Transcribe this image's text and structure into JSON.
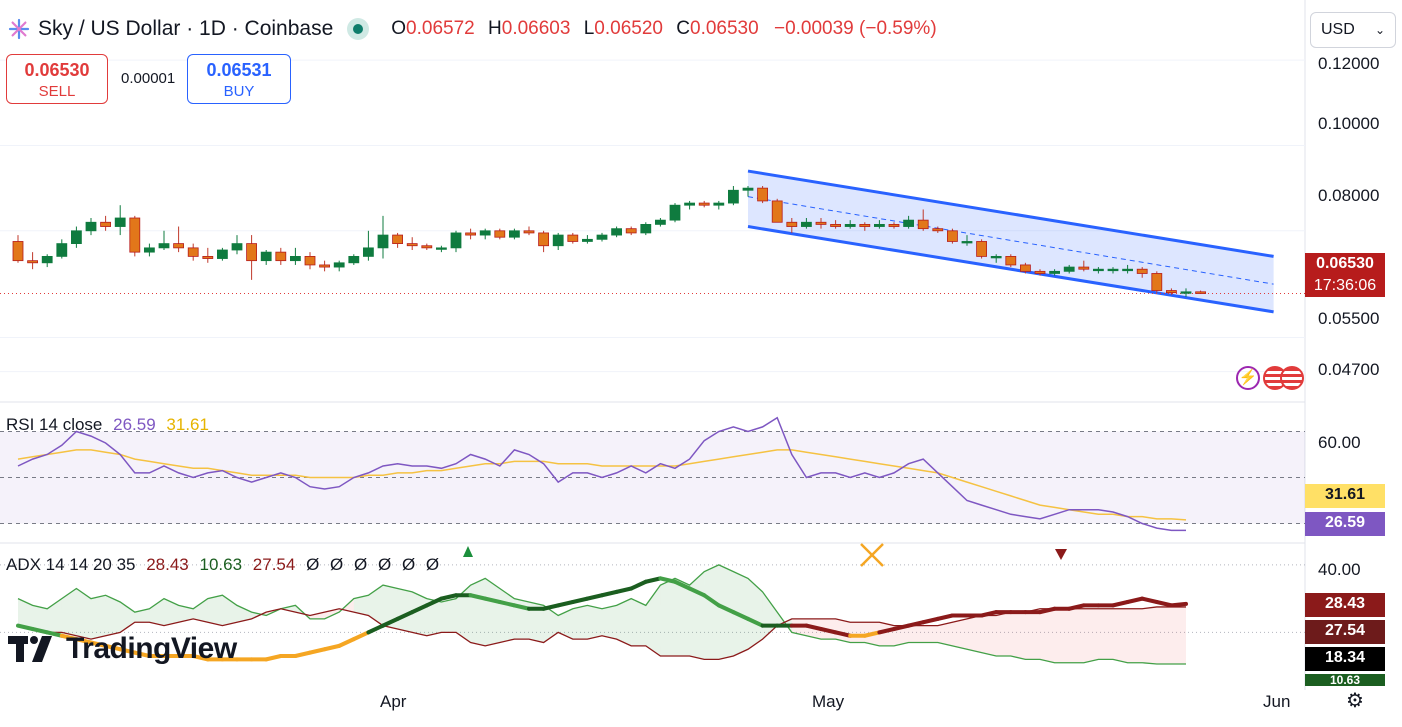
{
  "header": {
    "title": "Sky / US Dollar · 1D · Coinbase",
    "o_label": "O",
    "o_value": "0.06572",
    "h_label": "H",
    "h_value": "0.06603",
    "l_label": "L",
    "l_value": "0.06520",
    "c_label": "C",
    "c_value": "0.06530",
    "change": "−0.00039 (−0.59%)"
  },
  "trade": {
    "sell_price": "0.06530",
    "sell_label": "SELL",
    "spread": "0.00001",
    "buy_price": "0.06531",
    "buy_label": "BUY"
  },
  "currency_select": {
    "value": "USD"
  },
  "price_axis": {
    "labels": [
      "0.12000",
      "0.10000",
      "0.08000",
      "0.05500",
      "0.04700"
    ],
    "last_price": "0.06530",
    "countdown": "17:36:06"
  },
  "rsi": {
    "legend_name": "RSI 14 close",
    "value": "26.59",
    "ma_value": "31.61",
    "axis_label": "60.00"
  },
  "adx": {
    "legend_name": "ADX 14 14 20 35",
    "v1": "28.43",
    "v2": "10.63",
    "v3": "27.54",
    "empty": [
      "Ø",
      "Ø",
      "Ø",
      "Ø",
      "Ø",
      "Ø"
    ],
    "axis_label": "40.00",
    "tags": [
      "28.43",
      "27.54",
      "18.34",
      "10.63"
    ]
  },
  "x_axis": {
    "labels": [
      "Apr",
      "May",
      "Jun"
    ]
  },
  "branding": {
    "name": "TradingView"
  },
  "colors": {
    "up": "#089981",
    "down": "#f23645",
    "up_body": "#0f7b3f",
    "down_body": "#e2771a",
    "channel": "#2962ff",
    "rsi": "#7e57c2",
    "rsi_ma": "#f5c242",
    "adx_green": "#43a047",
    "adx_dark_red": "#8b1a1a",
    "adx_orange": "#f5a623",
    "adx_darkgreen": "#1b5e20"
  },
  "chart_data": [
    {
      "type": "candlestick",
      "title": "Sky / US Dollar · 1D · Coinbase",
      "x_labels": [
        "Apr",
        "May",
        "Jun"
      ],
      "ylim": [
        0.04,
        0.125
      ],
      "ohlc": [
        [
          0.0775,
          0.079,
          0.0725,
          0.073
        ],
        [
          0.073,
          0.075,
          0.071,
          0.0725
        ],
        [
          0.0725,
          0.0745,
          0.0715,
          0.074
        ],
        [
          0.074,
          0.078,
          0.0735,
          0.077
        ],
        [
          0.077,
          0.081,
          0.076,
          0.08
        ],
        [
          0.08,
          0.083,
          0.079,
          0.082
        ],
        [
          0.082,
          0.0835,
          0.08,
          0.081
        ],
        [
          0.081,
          0.086,
          0.079,
          0.083
        ],
        [
          0.083,
          0.0835,
          0.074,
          0.075
        ],
        [
          0.075,
          0.077,
          0.074,
          0.076
        ],
        [
          0.076,
          0.08,
          0.0755,
          0.077
        ],
        [
          0.077,
          0.081,
          0.075,
          0.076
        ],
        [
          0.076,
          0.077,
          0.073,
          0.074
        ],
        [
          0.074,
          0.076,
          0.0725,
          0.0735
        ],
        [
          0.0735,
          0.076,
          0.073,
          0.0755
        ],
        [
          0.0755,
          0.079,
          0.0745,
          0.077
        ],
        [
          0.077,
          0.079,
          0.0685,
          0.073
        ],
        [
          0.073,
          0.0755,
          0.072,
          0.075
        ],
        [
          0.075,
          0.076,
          0.072,
          0.073
        ],
        [
          0.073,
          0.076,
          0.072,
          0.074
        ],
        [
          0.074,
          0.075,
          0.071,
          0.072
        ],
        [
          0.072,
          0.073,
          0.0705,
          0.0715
        ],
        [
          0.0715,
          0.073,
          0.0705,
          0.0725
        ],
        [
          0.0725,
          0.0745,
          0.072,
          0.074
        ],
        [
          0.074,
          0.08,
          0.073,
          0.076
        ],
        [
          0.076,
          0.0835,
          0.0735,
          0.079
        ],
        [
          0.079,
          0.0795,
          0.076,
          0.077
        ],
        [
          0.077,
          0.0785,
          0.0755,
          0.0765
        ],
        [
          0.0765,
          0.077,
          0.0755,
          0.076
        ],
        [
          0.076,
          0.0765,
          0.075,
          0.076
        ],
        [
          0.076,
          0.08,
          0.075,
          0.0795
        ],
        [
          0.0795,
          0.0805,
          0.078,
          0.079
        ],
        [
          0.079,
          0.0805,
          0.078,
          0.08
        ],
        [
          0.08,
          0.0805,
          0.078,
          0.0785
        ],
        [
          0.0785,
          0.0805,
          0.078,
          0.08
        ],
        [
          0.08,
          0.081,
          0.079,
          0.0795
        ],
        [
          0.0795,
          0.08,
          0.075,
          0.0765
        ],
        [
          0.0765,
          0.0795,
          0.0755,
          0.079
        ],
        [
          0.079,
          0.0795,
          0.077,
          0.0775
        ],
        [
          0.0775,
          0.079,
          0.077,
          0.078
        ],
        [
          0.078,
          0.0795,
          0.0775,
          0.079
        ],
        [
          0.079,
          0.081,
          0.0785,
          0.0805
        ],
        [
          0.0805,
          0.081,
          0.079,
          0.0795
        ],
        [
          0.0795,
          0.082,
          0.079,
          0.0815
        ],
        [
          0.0815,
          0.083,
          0.081,
          0.0825
        ],
        [
          0.0825,
          0.0865,
          0.082,
          0.086
        ],
        [
          0.086,
          0.087,
          0.085,
          0.0865
        ],
        [
          0.0865,
          0.087,
          0.0855,
          0.086
        ],
        [
          0.086,
          0.087,
          0.085,
          0.0865
        ],
        [
          0.0865,
          0.0905,
          0.086,
          0.0895
        ],
        [
          0.0895,
          0.0905,
          0.088,
          0.09
        ],
        [
          0.09,
          0.0905,
          0.0865,
          0.087
        ],
        [
          0.087,
          0.0875,
          0.082,
          0.082
        ],
        [
          0.082,
          0.083,
          0.0795,
          0.081
        ],
        [
          0.081,
          0.083,
          0.0805,
          0.082
        ],
        [
          0.082,
          0.083,
          0.0805,
          0.0815
        ],
        [
          0.0815,
          0.0825,
          0.0805,
          0.081
        ],
        [
          0.081,
          0.0825,
          0.0805,
          0.0815
        ],
        [
          0.0815,
          0.082,
          0.08,
          0.081
        ],
        [
          0.081,
          0.0825,
          0.0805,
          0.0815
        ],
        [
          0.0815,
          0.082,
          0.0805,
          0.081
        ],
        [
          0.081,
          0.0835,
          0.0805,
          0.0825
        ],
        [
          0.0825,
          0.085,
          0.08,
          0.0805
        ],
        [
          0.0805,
          0.081,
          0.0795,
          0.08
        ],
        [
          0.08,
          0.0805,
          0.077,
          0.0775
        ],
        [
          0.0775,
          0.079,
          0.0765,
          0.0775
        ],
        [
          0.0775,
          0.078,
          0.0735,
          0.074
        ],
        [
          0.074,
          0.0745,
          0.0725,
          0.074
        ],
        [
          0.074,
          0.0745,
          0.0715,
          0.072
        ],
        [
          0.072,
          0.0725,
          0.07,
          0.0705
        ],
        [
          0.0705,
          0.071,
          0.0695,
          0.07
        ],
        [
          0.07,
          0.071,
          0.0695,
          0.0705
        ],
        [
          0.0705,
          0.072,
          0.07,
          0.0715
        ],
        [
          0.0715,
          0.073,
          0.0705,
          0.071
        ],
        [
          0.071,
          0.0715,
          0.07,
          0.071
        ],
        [
          0.071,
          0.0715,
          0.07,
          0.071
        ],
        [
          0.071,
          0.072,
          0.07,
          0.071
        ],
        [
          0.071,
          0.0715,
          0.069,
          0.07
        ],
        [
          0.07,
          0.0705,
          0.0655,
          0.066
        ],
        [
          0.066,
          0.0665,
          0.065,
          0.0655
        ],
        [
          0.0655,
          0.0665,
          0.0645,
          0.0657
        ],
        [
          0.0657,
          0.066,
          0.0652,
          0.0653
        ]
      ],
      "channel": {
        "upper": [
          0.094,
          0.074
        ],
        "lower": [
          0.081,
          0.061
        ],
        "mid": [
          0.088,
          0.0675
        ]
      }
    },
    {
      "type": "line",
      "name": "RSI 14 close",
      "ylim": [
        25,
        75
      ],
      "bands": [
        70,
        50,
        30
      ],
      "series": [
        {
          "name": "RSI",
          "values": [
            55,
            58,
            60,
            64,
            70,
            68,
            65,
            60,
            52,
            52,
            55,
            52,
            50,
            52,
            53,
            50,
            48,
            50,
            52,
            50,
            46,
            45,
            46,
            50,
            52,
            55,
            56,
            55,
            55,
            54,
            56,
            60,
            58,
            55,
            62,
            60,
            56,
            48,
            52,
            52,
            50,
            52,
            55,
            52,
            56,
            54,
            58,
            66,
            70,
            72,
            70,
            72,
            76,
            60,
            50,
            52,
            52,
            50,
            52,
            50,
            52,
            56,
            58,
            52,
            46,
            40,
            38,
            36,
            34,
            33,
            32,
            34,
            36,
            36,
            36,
            35,
            33,
            30,
            28,
            27,
            27
          ]
        },
        {
          "name": "MA",
          "values": [
            58,
            59,
            60,
            61,
            62,
            62,
            61,
            60,
            58,
            57,
            56,
            55,
            54,
            54,
            53,
            52,
            51,
            51,
            51,
            51,
            50,
            50,
            50,
            50,
            51,
            51,
            52,
            52,
            53,
            53,
            54,
            55,
            56,
            56,
            57,
            57,
            57,
            56,
            56,
            56,
            55,
            55,
            55,
            55,
            55,
            55,
            56,
            57,
            58,
            59,
            60,
            61,
            62,
            62,
            61,
            60,
            59,
            58,
            57,
            56,
            55,
            54,
            53,
            52,
            50,
            48,
            46,
            44,
            42,
            40,
            38,
            37,
            36,
            35,
            34,
            34,
            33,
            33,
            32,
            32,
            31.6
          ]
        }
      ]
    },
    {
      "type": "line",
      "name": "ADX 14 14 20 35",
      "ylim": [
        5,
        45
      ],
      "series": [
        {
          "name": "+DI",
          "values": [
            30,
            28,
            27,
            30,
            33,
            30,
            31,
            29,
            26,
            27,
            30,
            28,
            27,
            30,
            31,
            28,
            26,
            25,
            27,
            28,
            24,
            24,
            26,
            30,
            31,
            34,
            33,
            32,
            30,
            29,
            30,
            34,
            36,
            33,
            30,
            29,
            28,
            25,
            27,
            28,
            27,
            28,
            30,
            28,
            34,
            36,
            34,
            38,
            40,
            38,
            36,
            32,
            26,
            20,
            19,
            18,
            18,
            17,
            17,
            16,
            16,
            17,
            17,
            17,
            16,
            15,
            14,
            13,
            13,
            12,
            12,
            11,
            11,
            11,
            12,
            12,
            11,
            11,
            10.63,
            10.63,
            10.63
          ]
        },
        {
          "name": "-DI",
          "values": [
            22,
            21,
            20,
            20,
            19,
            18,
            19,
            20,
            23,
            23,
            22,
            23,
            24,
            23,
            22,
            23,
            24,
            26,
            27,
            26,
            25,
            26,
            27,
            26,
            25,
            22,
            21,
            20,
            19,
            20,
            20,
            17,
            16,
            17,
            18,
            18,
            17,
            20,
            18,
            18,
            19,
            18,
            16,
            16,
            13,
            13,
            13,
            12,
            12,
            13,
            15,
            18,
            22,
            24,
            24,
            24,
            24,
            23,
            23,
            23,
            22,
            22,
            22,
            22,
            23,
            24,
            25,
            25,
            26,
            26,
            27,
            27,
            27,
            27,
            27,
            27,
            27,
            27,
            27.54,
            27.54,
            27.54
          ]
        },
        {
          "name": "ADX",
          "values": [
            22,
            21,
            20,
            19,
            18,
            17,
            16,
            15,
            14,
            13,
            13,
            13,
            13,
            12,
            12,
            12,
            12,
            12,
            13,
            13,
            14,
            15,
            16,
            18,
            20,
            22,
            24,
            26,
            28,
            30,
            31,
            31,
            30,
            29,
            28,
            27,
            27,
            28,
            29,
            30,
            31,
            32,
            33,
            35,
            36,
            35,
            33,
            31,
            28,
            26,
            24,
            22,
            22,
            22,
            22,
            21,
            20,
            19,
            19,
            20,
            21,
            22,
            23,
            24,
            25,
            25,
            25,
            26,
            26,
            26,
            26,
            27,
            27,
            28,
            28,
            28,
            29,
            30,
            29,
            28,
            28.43
          ]
        }
      ]
    }
  ]
}
